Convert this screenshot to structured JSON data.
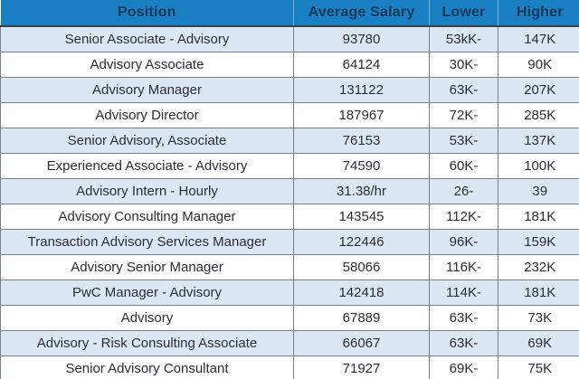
{
  "chart_data": {
    "type": "table",
    "columns": [
      "Position",
      "Average Salary",
      "Lower",
      "Higher"
    ],
    "rows": [
      [
        "Senior Associate - Advisory",
        "93780",
        "53kK-",
        "147K"
      ],
      [
        "Advisory Associate",
        "64124",
        "30K-",
        "90K"
      ],
      [
        "Advisory Manager",
        "131122",
        "63K-",
        "207K"
      ],
      [
        "Advisory Director",
        "187967",
        "72K-",
        "285K"
      ],
      [
        "Senior Advisory, Associate",
        "76153",
        "53K-",
        "137K"
      ],
      [
        "Experienced Associate - Advisory",
        "74590",
        "60K-",
        "100K"
      ],
      [
        "Advisory Intern - Hourly",
        "31.38/hr",
        "26-",
        "39"
      ],
      [
        "Advisory Consulting Manager",
        "143545",
        "112K-",
        "181K"
      ],
      [
        "Transaction Advisory Services Manager",
        "122446",
        "96K-",
        "159K"
      ],
      [
        "Advisory Senior Manager",
        "58066",
        "116K-",
        "232K"
      ],
      [
        "PwC Manager - Advisory",
        "142418",
        "114K-",
        "181K"
      ],
      [
        "Advisory",
        "67889",
        "63K-",
        "73K"
      ],
      [
        "Advisory - Risk Consulting Associate",
        "66067",
        "63K-",
        "69K"
      ],
      [
        "Senior Advisory Consultant",
        "71927",
        "69K-",
        "75K"
      ]
    ],
    "layout": {
      "header_position": "top",
      "grid": true,
      "row_striping": "odd rows light blue, even rows white",
      "text_alignment": "center"
    }
  },
  "colors": {
    "header_background": "#1b7fc3",
    "header_text": "#17395c",
    "header_separator": "#6fb3dd",
    "header_bottom_border": "#39434d",
    "row_stripe_blue": "#dbe8f4",
    "row_stripe_white": "#fdfeff",
    "grid_border": "#76828e",
    "body_text": "#2d2d2d"
  }
}
